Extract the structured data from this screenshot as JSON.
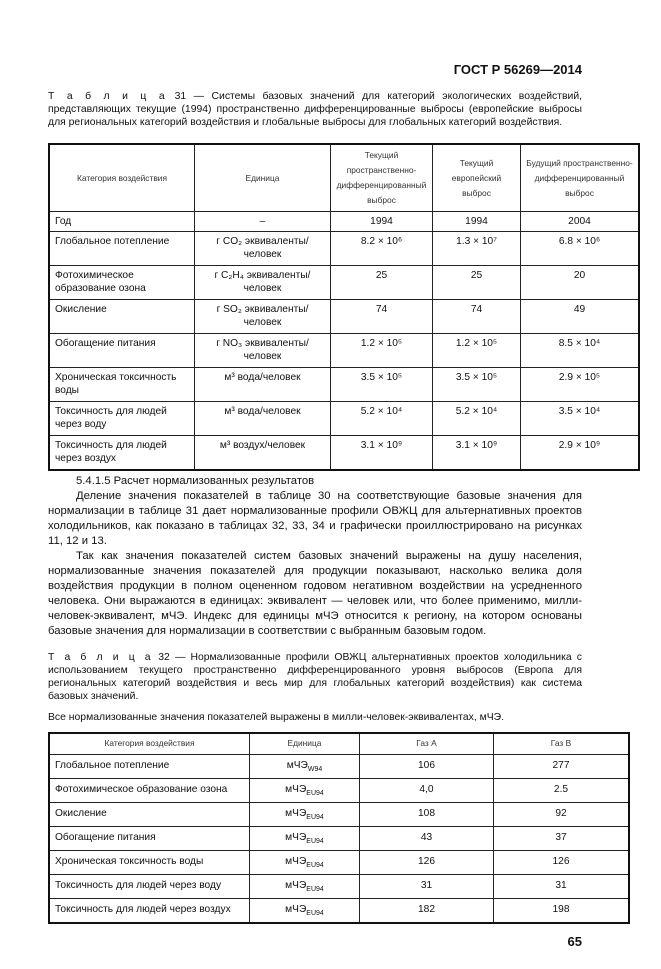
{
  "header": {
    "doc_code": "ГОСТ Р 56269—2014"
  },
  "table31": {
    "label": "Т а б л и ц а",
    "caption": "31 — Системы базовых значений для категорий экологических воздействий, представляющих текущие (1994) пространственно дифференцированные выбросы (европейские выбросы для региональных категорий воздействия и глобальные выбросы для глобальных категорий воздействия.",
    "columns": [
      "Категория воздействия",
      "Единица",
      "Текущий пространственно-дифференцированный выброс",
      "Текущий европейский выброс",
      "Будущий пространственно-дифференцированный выброс"
    ],
    "rows": [
      [
        "Год",
        "–",
        "1994",
        "1994",
        "2004"
      ],
      [
        "Глобальное потепление",
        "г CO₂ эквиваленты/человек",
        "8.2 × 10⁶",
        "1.3 × 10⁷",
        "6.8 × 10⁶"
      ],
      [
        "Фотохимическое образование озона",
        "г C₂H₄ эквиваленты/человек",
        "25",
        "25",
        "20"
      ],
      [
        "Окисление",
        "г SO₂ эквиваленты/человек",
        "74",
        "74",
        "49"
      ],
      [
        "Обогащение питания",
        "г NO₃ эквиваленты/человек",
        "1.2 × 10⁵",
        "1.2 × 10⁵",
        "8.5 × 10⁴"
      ],
      [
        "Хроническая токсичность воды",
        "м³ вода/человек",
        "3.5 × 10⁵",
        "3.5 × 10⁵",
        "2.9 × 10⁵"
      ],
      [
        "Токсичность для людей через воду",
        "м³ вода/человек",
        "5.2 × 10⁴",
        "5.2 × 10⁴",
        "3.5 × 10⁴"
      ],
      [
        "Токсичность для людей через воздух",
        "м³ воздух/человек",
        "3.1 × 10⁹",
        "3.1 × 10⁹",
        "2.9 × 10⁹"
      ]
    ]
  },
  "section": {
    "heading": "5.4.1.5 Расчет нормализованных результатов",
    "paragraphs": [
      "Деление значения показателей в таблице 30 на соответствующие базовые значения для нормализации в таблице 31 дает нормализованные профили ОВЖЦ для альтернативных проектов холодильников, как показано в таблицах 32, 33, 34 и графически проиллюстрировано на рисунках 11, 12 и 13.",
      "Так как значения показателей систем базовых значений выражены на душу населения, нормализованные значения показателей для продукции показывают, насколько велика доля воздействия продукции в полном оцененном годовом негативном воздействии на усредненного человека. Они выражаются в единицах: эквивалент — человек или, что более применимо, милли-человек-эквивалент, мЧЭ. Индекс для единицы мЧЭ относится к региону, на котором основаны базовые значения для нормализации в соответствии с выбранным базовым годом."
    ]
  },
  "table32": {
    "label": "Т а б л и ц а",
    "caption": "32 — Нормализованные профили ОВЖЦ альтернативных проектов холодильника с использованием текущего пространственно дифференцированного уровня выбросов (Европа для региональных категорий воздействия и весь мир для глобальных категорий воздействия) как система базовых значений.",
    "note": "Все нормализованные значения показателей выражены в милли-человек-эквивалентах, мЧЭ.",
    "columns": [
      "Категория воздействия",
      "Единица",
      "Газ А",
      "Газ В"
    ],
    "rows": [
      [
        "Глобальное потепление",
        "мЧЭ",
        "W94",
        "106",
        "277"
      ],
      [
        "Фотохимическое образование озона",
        "мЧЭ",
        "EU94",
        "4,0",
        "2.5"
      ],
      [
        "Окисление",
        "мЧЭ",
        "EU94",
        "108",
        "92"
      ],
      [
        "Обогащение питания",
        "мЧЭ",
        "EU94",
        "43",
        "37"
      ],
      [
        "Хроническая токсичность воды",
        "мЧЭ",
        "EU94",
        "126",
        "126"
      ],
      [
        "Токсичность для людей через воду",
        "мЧЭ",
        "EU94",
        "31",
        "31"
      ],
      [
        "Токсичность для людей через воздух",
        "мЧЭ",
        "EU94",
        "182",
        "198"
      ]
    ]
  },
  "footer": {
    "page_number": "65"
  }
}
